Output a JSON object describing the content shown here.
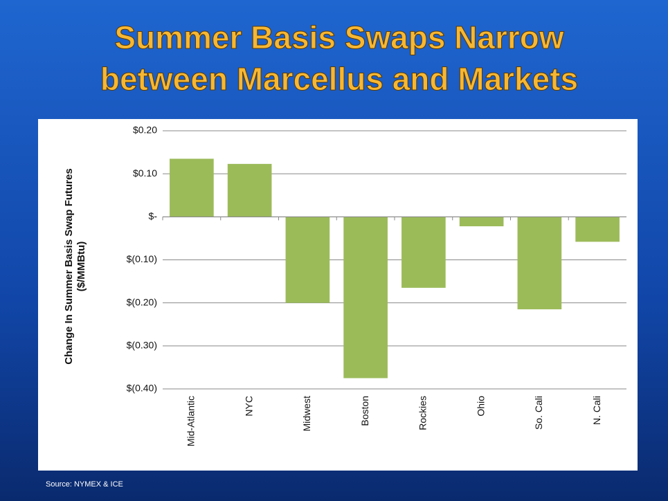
{
  "title": [
    "Summer Basis Swaps Narrow",
    "between Marcellus and Markets"
  ],
  "source": "Source:  NYMEX & ICE",
  "chart_data": {
    "type": "bar",
    "y_label": [
      "Change In Summer Basis Swap Futures",
      "($/MMBtu)"
    ],
    "categories": [
      "Mid-Atlantic",
      "NYC",
      "Midwest",
      "Boston",
      "Rockies",
      "Ohio",
      "So. Cali",
      "N. Cali"
    ],
    "values": [
      0.135,
      0.123,
      -0.2,
      -0.375,
      -0.165,
      -0.022,
      -0.215,
      -0.058
    ],
    "color": "#9bbb59",
    "ylim": [
      -0.4,
      0.2
    ],
    "yticks": [
      {
        "value": 0.2,
        "label": "$0.20"
      },
      {
        "value": 0.1,
        "label": "$0.10"
      },
      {
        "value": 0,
        "label": "$-"
      },
      {
        "value": -0.1,
        "label": "$(0.10)"
      },
      {
        "value": -0.2,
        "label": "$(0.20)"
      },
      {
        "value": -0.3,
        "label": "$(0.30)"
      },
      {
        "value": -0.4,
        "label": "$(0.40)"
      }
    ],
    "grid": true
  }
}
